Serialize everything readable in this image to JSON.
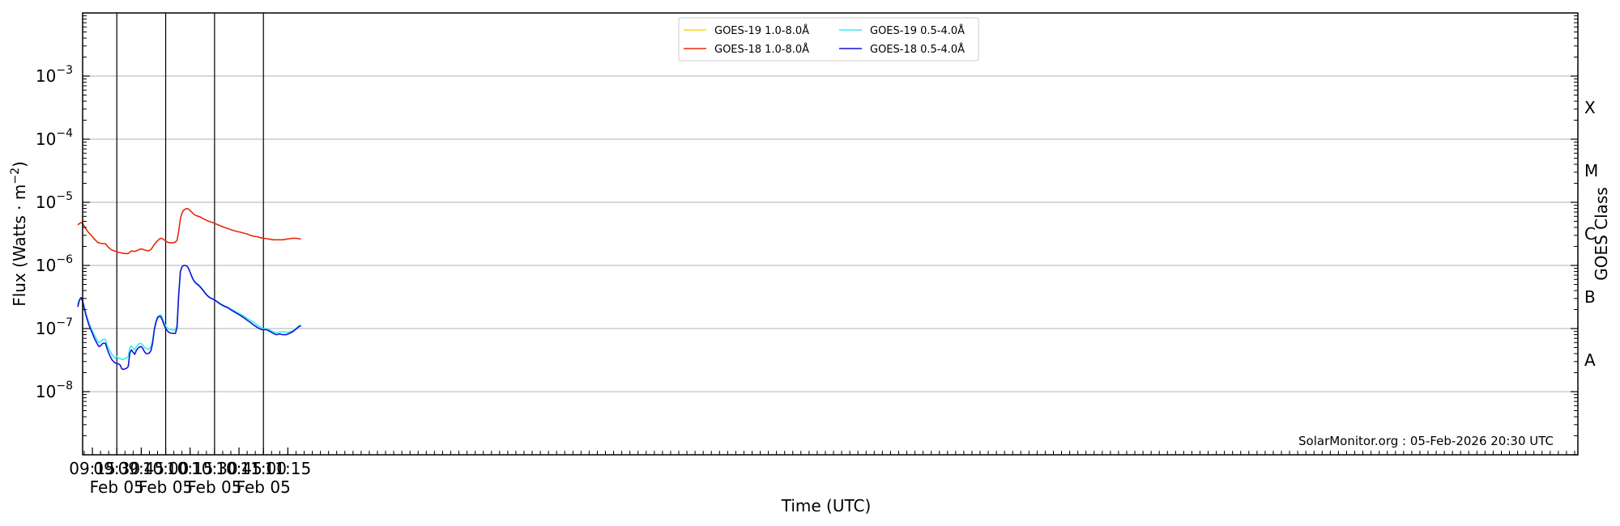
{
  "chart_data": {
    "type": "line",
    "ylabel_main": "Flux (Watts · m",
    "ylabel_exp": "−2",
    "ylabel_close": ")",
    "xlabel": "Time (UTC)",
    "right_label": "GOES Class",
    "credit": "SolarMonitor.org : 05-Feb-2026 20:30 UTC",
    "y_scale": "log",
    "ylim": [
      1e-09,
      0.01
    ],
    "xlim_minutes": [
      549,
      1467
    ],
    "yticks": [
      {
        "base": "10",
        "exp": "−8",
        "value": 1e-08
      },
      {
        "base": "10",
        "exp": "−7",
        "value": 1e-07
      },
      {
        "base": "10",
        "exp": "−6",
        "value": 1e-06
      },
      {
        "base": "10",
        "exp": "−5",
        "value": 1e-05
      },
      {
        "base": "10",
        "exp": "−4",
        "value": 0.0001
      },
      {
        "base": "10",
        "exp": "−3",
        "value": 0.001
      }
    ],
    "xticks": [
      {
        "time": "09:15",
        "date": "",
        "t": 555
      },
      {
        "time": "09:30",
        "date": "Feb 05",
        "t": 570
      },
      {
        "time": "09:45",
        "date": "",
        "t": 585
      },
      {
        "time": "10:00",
        "date": "Feb 05",
        "t": 600
      },
      {
        "time": "10:15",
        "date": "",
        "t": 615
      },
      {
        "time": "10:30",
        "date": "Feb 05",
        "t": 630
      },
      {
        "time": "10:45",
        "date": "",
        "t": 645
      },
      {
        "time": "11:00",
        "date": "Feb 05",
        "t": 660
      },
      {
        "time": "11:15",
        "date": "",
        "t": 675
      }
    ],
    "goes_classes": [
      {
        "label": "A",
        "value": 3.16e-08
      },
      {
        "label": "B",
        "value": 3.16e-07
      },
      {
        "label": "C",
        "value": 3.16e-06
      },
      {
        "label": "M",
        "value": 3.16e-05
      },
      {
        "label": "X",
        "value": 0.000316
      }
    ],
    "day_lines": [
      570,
      600,
      630,
      660
    ],
    "legend": [
      {
        "name": "GOES-19 1.0-8.0Å",
        "color": "#ffd700"
      },
      {
        "name": "GOES-18 1.0-8.0Å",
        "color": "#e8280a"
      },
      {
        "name": "GOES-19 0.5-4.0Å",
        "color": "#33eeee"
      },
      {
        "name": "GOES-18 0.5-4.0Å",
        "color": "#1414d6"
      }
    ],
    "series": [
      {
        "name": "GOES-18 1.0-8.0Å",
        "color": "#e8280a",
        "x": [
          546,
          547,
          548,
          549,
          550,
          551,
          552,
          553,
          554,
          555,
          556,
          557,
          558,
          559,
          560,
          561,
          562,
          563,
          564,
          565,
          566,
          567,
          568,
          569,
          570,
          571,
          572,
          573,
          574,
          575,
          576,
          577,
          578,
          579,
          580,
          581,
          582,
          583,
          584,
          585,
          586,
          587,
          588,
          589,
          590,
          591,
          592,
          593,
          594,
          595,
          596,
          597,
          598,
          599,
          600,
          601,
          602,
          603,
          604,
          605,
          606,
          607,
          608,
          609,
          610,
          611,
          612,
          613,
          614,
          615,
          616,
          617,
          618,
          619,
          620,
          621,
          622,
          623,
          624,
          625,
          626,
          627,
          628,
          629,
          630,
          632,
          634,
          636,
          638,
          640,
          642,
          644,
          646,
          648,
          650,
          652,
          654,
          656,
          658,
          660,
          662,
          664,
          666,
          668,
          670,
          672,
          674,
          676,
          678,
          680,
          682,
          683
        ],
        "y": [
          4.4e-06,
          4.6e-06,
          4.8e-06,
          4.6e-06,
          4.2e-06,
          3.8e-06,
          3.5e-06,
          3.25e-06,
          3.05e-06,
          2.85e-06,
          2.65e-06,
          2.5e-06,
          2.35e-06,
          2.28e-06,
          2.25e-06,
          2.22e-06,
          2.22e-06,
          2.2e-06,
          2.05e-06,
          1.92e-06,
          1.82e-06,
          1.75e-06,
          1.72e-06,
          1.68e-06,
          1.65e-06,
          1.62e-06,
          1.6e-06,
          1.57e-06,
          1.55e-06,
          1.55e-06,
          1.54e-06,
          1.55e-06,
          1.62e-06,
          1.7e-06,
          1.68e-06,
          1.66e-06,
          1.7e-06,
          1.76e-06,
          1.8e-06,
          1.82e-06,
          1.8e-06,
          1.76e-06,
          1.73e-06,
          1.7e-06,
          1.72e-06,
          1.8e-06,
          1.95e-06,
          2.15e-06,
          2.3e-06,
          2.45e-06,
          2.6e-06,
          2.7e-06,
          2.65e-06,
          2.55e-06,
          2.45e-06,
          2.35e-06,
          2.3e-06,
          2.28e-06,
          2.28e-06,
          2.3e-06,
          2.35e-06,
          2.5e-06,
          3.5e-06,
          5.5e-06,
          6.8e-06,
          7.5e-06,
          7.8e-06,
          8e-06,
          7.8e-06,
          7.4e-06,
          7e-06,
          6.6e-06,
          6.3e-06,
          6.1e-06,
          6e-06,
          5.9e-06,
          5.7e-06,
          5.5e-06,
          5.35e-06,
          5.2e-06,
          5.05e-06,
          4.95e-06,
          4.85e-06,
          4.75e-06,
          4.65e-06,
          4.4e-06,
          4.2e-06,
          4e-06,
          3.85e-06,
          3.7e-06,
          3.55e-06,
          3.45e-06,
          3.35e-06,
          3.25e-06,
          3.15e-06,
          3e-06,
          2.9e-06,
          2.85e-06,
          2.75e-06,
          2.7e-06,
          2.65e-06,
          2.6e-06,
          2.55e-06,
          2.55e-06,
          2.55e-06,
          2.55e-06,
          2.6e-06,
          2.65e-06,
          2.7e-06,
          2.7e-06,
          2.65e-06,
          2.6e-06
        ]
      },
      {
        "name": "GOES-19 0.5-4.0Å",
        "color": "#33eeee",
        "x": [
          546,
          547,
          548,
          549,
          550,
          551,
          552,
          553,
          554,
          555,
          556,
          557,
          558,
          559,
          560,
          561,
          562,
          563,
          564,
          565,
          566,
          567,
          568,
          569,
          570,
          571,
          572,
          573,
          574,
          575,
          576,
          577,
          578,
          579,
          580,
          581,
          582,
          583,
          584,
          585,
          586,
          587,
          588,
          589,
          590,
          591,
          592,
          593,
          594,
          595,
          596,
          597,
          598,
          599,
          600,
          601,
          602,
          603,
          604,
          605,
          606,
          607,
          608,
          609,
          610,
          611,
          612,
          613,
          614,
          615,
          616,
          617,
          618,
          619,
          620,
          621,
          622,
          623,
          624,
          625,
          626,
          627,
          628,
          629,
          630,
          632,
          634,
          636,
          638,
          640,
          642,
          644,
          646,
          648,
          650,
          652,
          654,
          656,
          658,
          660,
          662,
          664,
          666,
          668,
          670,
          672,
          674,
          676,
          678,
          680,
          682,
          683
        ],
        "y": [
          2.4e-07,
          2.9e-07,
          3.1e-07,
          2.8e-07,
          2.2e-07,
          1.75e-07,
          1.45e-07,
          1.2e-07,
          1.05e-07,
          9.2e-08,
          8e-08,
          7.3e-08,
          6.5e-08,
          6e-08,
          6.2e-08,
          6.6e-08,
          6.8e-08,
          6.7e-08,
          5.5e-08,
          4.8e-08,
          4.3e-08,
          3.9e-08,
          3.6e-08,
          3.4e-08,
          3.6e-08,
          3.4e-08,
          3.3e-08,
          3.3e-08,
          3.2e-08,
          3.4e-08,
          3.4e-08,
          3.6e-08,
          5e-08,
          5.3e-08,
          4.9e-08,
          4.6e-08,
          5.2e-08,
          5.6e-08,
          5.8e-08,
          5.8e-08,
          5.5e-08,
          5e-08,
          4.9e-08,
          4.7e-08,
          4.7e-08,
          5.2e-08,
          6.6e-08,
          1e-07,
          1.3e-07,
          1.55e-07,
          1.62e-07,
          1.65e-07,
          1.45e-07,
          1.25e-07,
          1.1e-07,
          1.02e-07,
          9.8e-08,
          9.6e-08,
          9.5e-08,
          9.5e-08,
          9.5e-08,
          1.15e-07,
          3.5e-07,
          8e-07,
          9.5e-07,
          1e-06,
          1e-06,
          9.8e-07,
          9e-07,
          7.8e-07,
          6.8e-07,
          6e-07,
          5.5e-07,
          5.2e-07,
          5e-07,
          4.7e-07,
          4.4e-07,
          4.1e-07,
          3.8e-07,
          3.5e-07,
          3.3e-07,
          3.15e-07,
          3.05e-07,
          2.95e-07,
          2.85e-07,
          2.65e-07,
          2.45e-07,
          2.3e-07,
          2.2e-07,
          2.05e-07,
          1.92e-07,
          1.8e-07,
          1.68e-07,
          1.58e-07,
          1.45e-07,
          1.35e-07,
          1.25e-07,
          1.15e-07,
          1.05e-07,
          1e-07,
          1e-07,
          9.4e-08,
          8.9e-08,
          8.6e-08,
          8.8e-08,
          8.9e-08,
          8.7e-08,
          8.8e-08,
          9.2e-08,
          1e-07,
          1.12e-07,
          1.15e-07
        ]
      },
      {
        "name": "GOES-18 0.5-4.0Å",
        "color": "#1414d6",
        "x": [
          546,
          547,
          548,
          549,
          550,
          551,
          552,
          553,
          554,
          555,
          556,
          557,
          558,
          559,
          560,
          561,
          562,
          563,
          564,
          565,
          566,
          567,
          568,
          569,
          570,
          571,
          572,
          573,
          574,
          575,
          576,
          577,
          578,
          579,
          580,
          581,
          582,
          583,
          584,
          585,
          586,
          587,
          588,
          589,
          590,
          591,
          592,
          593,
          594,
          595,
          596,
          597,
          598,
          599,
          600,
          601,
          602,
          603,
          604,
          605,
          606,
          607,
          608,
          609,
          610,
          611,
          612,
          613,
          614,
          615,
          616,
          617,
          618,
          619,
          620,
          621,
          622,
          623,
          624,
          625,
          626,
          627,
          628,
          629,
          630,
          632,
          634,
          636,
          638,
          640,
          642,
          644,
          646,
          648,
          650,
          652,
          654,
          656,
          658,
          660,
          662,
          664,
          666,
          668,
          670,
          672,
          674,
          676,
          678,
          680,
          682,
          683
        ],
        "y": [
          2.2e-07,
          2.8e-07,
          3.1e-07,
          2.7e-07,
          2.1e-07,
          1.65e-07,
          1.35e-07,
          1.12e-07,
          9.6e-08,
          8.4e-08,
          7.2e-08,
          6.4e-08,
          5.7e-08,
          5.2e-08,
          5.3e-08,
          5.7e-08,
          5.9e-08,
          5.8e-08,
          4.8e-08,
          4.1e-08,
          3.6e-08,
          3.2e-08,
          3e-08,
          2.85e-08,
          2.8e-08,
          2.75e-08,
          2.65e-08,
          2.3e-08,
          2.25e-08,
          2.3e-08,
          2.35e-08,
          2.5e-08,
          4.1e-08,
          4.6e-08,
          4.2e-08,
          3.9e-08,
          4.5e-08,
          4.9e-08,
          5.1e-08,
          5.2e-08,
          4.8e-08,
          4.3e-08,
          4e-08,
          4e-08,
          4.1e-08,
          4.5e-08,
          6e-08,
          9.5e-08,
          1.25e-07,
          1.48e-07,
          1.55e-07,
          1.55e-07,
          1.35e-07,
          1.15e-07,
          1e-07,
          9.2e-08,
          8.7e-08,
          8.5e-08,
          8.4e-08,
          8.4e-08,
          8.4e-08,
          1.05e-07,
          3.4e-07,
          8e-07,
          9.5e-07,
          1e-06,
          1e-06,
          9.8e-07,
          9e-07,
          7.8e-07,
          6.7e-07,
          5.9e-07,
          5.4e-07,
          5.1e-07,
          4.9e-07,
          4.6e-07,
          4.3e-07,
          4e-07,
          3.7e-07,
          3.45e-07,
          3.25e-07,
          3.1e-07,
          3e-07,
          2.92e-07,
          2.85e-07,
          2.6e-07,
          2.4e-07,
          2.25e-07,
          2.15e-07,
          1.98e-07,
          1.85e-07,
          1.72e-07,
          1.6e-07,
          1.48e-07,
          1.36e-07,
          1.25e-07,
          1.14e-07,
          1.05e-07,
          9.8e-08,
          9.6e-08,
          9.6e-08,
          9e-08,
          8.4e-08,
          8e-08,
          8.2e-08,
          8e-08,
          8e-08,
          8.4e-08,
          8.9e-08,
          9.8e-08,
          1.08e-07,
          1.1e-07
        ]
      }
    ]
  }
}
